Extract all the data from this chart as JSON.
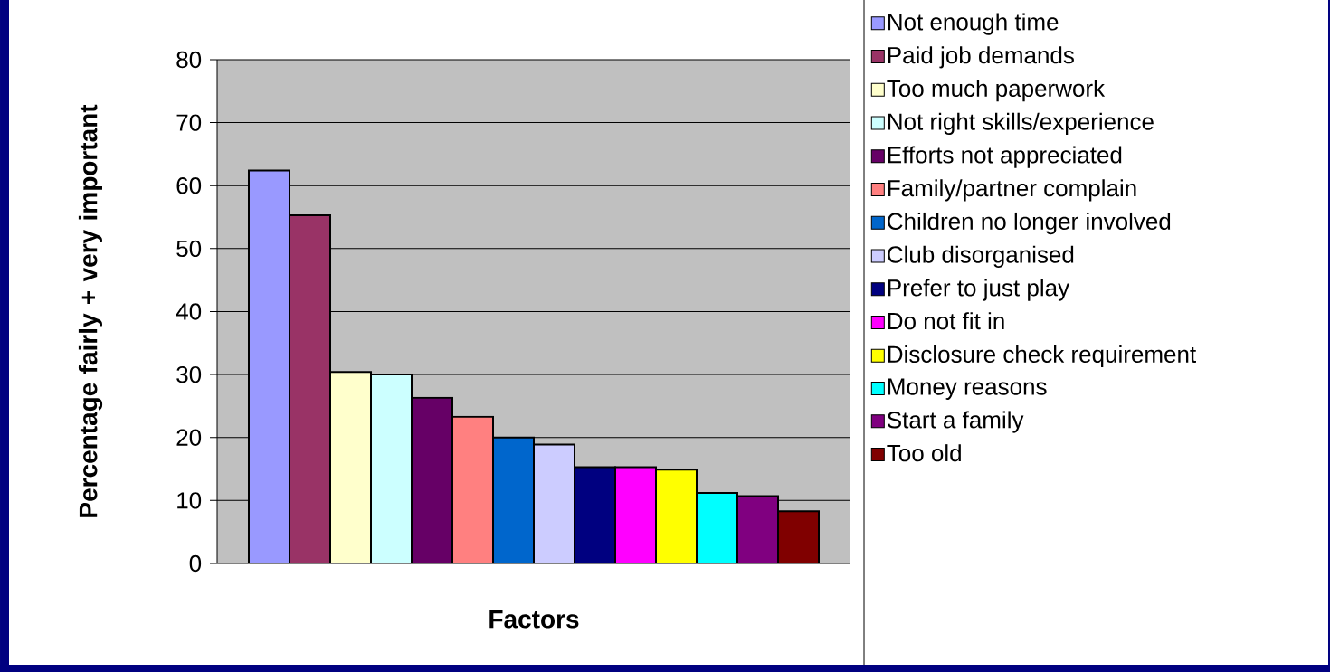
{
  "chart_data": {
    "type": "bar",
    "categories": [
      null
    ],
    "series": [
      {
        "name": "Not enough time",
        "color": "#9999ff",
        "values": [
          62.4
        ]
      },
      {
        "name": "Paid job demands",
        "color": "#993366",
        "values": [
          55.3
        ]
      },
      {
        "name": "Too much paperwork",
        "color": "#ffffcc",
        "values": [
          30.4
        ]
      },
      {
        "name": "Not right skills/experience",
        "color": "#ccffff",
        "values": [
          30.0
        ]
      },
      {
        "name": "Efforts not appreciated",
        "color": "#660066",
        "values": [
          26.3
        ]
      },
      {
        "name": "Family/partner complain",
        "color": "#ff8080",
        "values": [
          23.3
        ]
      },
      {
        "name": "Children no longer involved",
        "color": "#0066cc",
        "values": [
          20.0
        ]
      },
      {
        "name": "Club disorganised",
        "color": "#ccccff",
        "values": [
          18.9
        ]
      },
      {
        "name": "Prefer to just play",
        "color": "#000080",
        "values": [
          15.3
        ]
      },
      {
        "name": "Do not fit in",
        "color": "#ff00ff",
        "values": [
          15.3
        ]
      },
      {
        "name": "Disclosure check requirement",
        "color": "#ffff00",
        "values": [
          14.9
        ]
      },
      {
        "name": "Money reasons",
        "color": "#00ffff",
        "values": [
          11.2
        ]
      },
      {
        "name": "Start a family",
        "color": "#800080",
        "values": [
          10.7
        ]
      },
      {
        "name": "Too old",
        "color": "#800000",
        "values": [
          8.3
        ]
      }
    ],
    "ylim": [
      0,
      80
    ],
    "yticks": [
      0,
      10,
      20,
      30,
      40,
      50,
      60,
      70,
      80
    ],
    "ylabel": "Percentage fairly + very important",
    "xlabel": "Factors",
    "grid": "y",
    "legend": "right"
  }
}
